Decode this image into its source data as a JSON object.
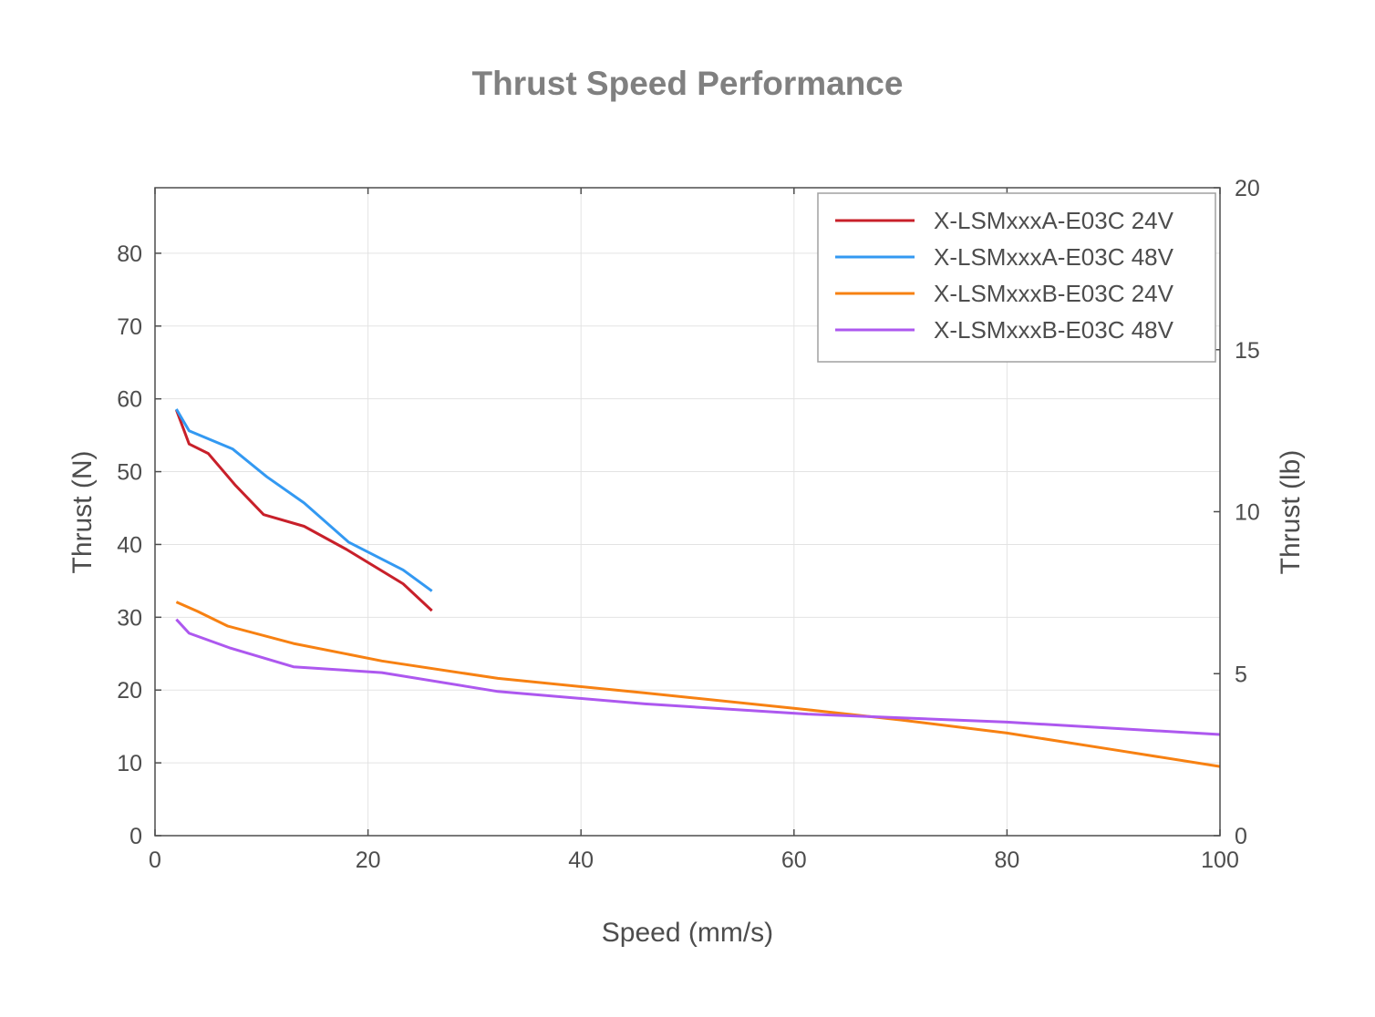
{
  "chart_data": {
    "type": "line",
    "title": "Thrust Speed Performance",
    "xlabel": "Speed (mm/s)",
    "ylabel": "Thrust (N)",
    "y2label": "Thrust (lb)",
    "xlim": [
      0,
      100
    ],
    "ylim": [
      0,
      89
    ],
    "y2lim": [
      0,
      20
    ],
    "xticks": [
      0,
      20,
      40,
      60,
      80,
      100
    ],
    "yticks": [
      0,
      10,
      20,
      30,
      40,
      50,
      60,
      70,
      80
    ],
    "y2ticks": [
      0,
      5,
      10,
      15,
      20
    ],
    "grid": true,
    "legend_position": "top-right",
    "series": [
      {
        "name": "X-LSMxxxA-E03C 24V",
        "color": "#c8202a",
        "points": [
          [
            2,
            58.5
          ],
          [
            3.2,
            53.8
          ],
          [
            5,
            52.5
          ],
          [
            7.5,
            48.2
          ],
          [
            10.2,
            44.1
          ],
          [
            14,
            42.5
          ],
          [
            18,
            39.3
          ],
          [
            23.3,
            34.6
          ],
          [
            26,
            30.9
          ]
        ]
      },
      {
        "name": "X-LSMxxxA-E03C 48V",
        "color": "#3399f2",
        "points": [
          [
            2,
            58.6
          ],
          [
            3.2,
            55.6
          ],
          [
            7.3,
            53.1
          ],
          [
            10.5,
            49.3
          ],
          [
            14,
            45.7
          ],
          [
            18.2,
            40.3
          ],
          [
            23.3,
            36.5
          ],
          [
            26,
            33.6
          ]
        ]
      },
      {
        "name": "X-LSMxxxB-E03C 24V",
        "color": "#f78112",
        "points": [
          [
            2,
            32.1
          ],
          [
            4,
            30.8
          ],
          [
            6.8,
            28.8
          ],
          [
            13,
            26.4
          ],
          [
            21.3,
            24.0
          ],
          [
            32.2,
            21.6
          ],
          [
            46,
            19.6
          ],
          [
            60,
            17.5
          ],
          [
            70,
            15.9
          ],
          [
            80,
            14.1
          ],
          [
            90,
            11.8
          ],
          [
            100,
            9.5
          ]
        ]
      },
      {
        "name": "X-LSMxxxB-E03C 48V",
        "color": "#ad58ef",
        "points": [
          [
            2,
            29.7
          ],
          [
            3.2,
            27.8
          ],
          [
            7,
            25.8
          ],
          [
            13,
            23.2
          ],
          [
            21.3,
            22.4
          ],
          [
            32.2,
            19.8
          ],
          [
            46,
            18.1
          ],
          [
            61.3,
            16.7
          ],
          [
            80,
            15.6
          ],
          [
            100,
            13.9
          ]
        ]
      }
    ]
  }
}
